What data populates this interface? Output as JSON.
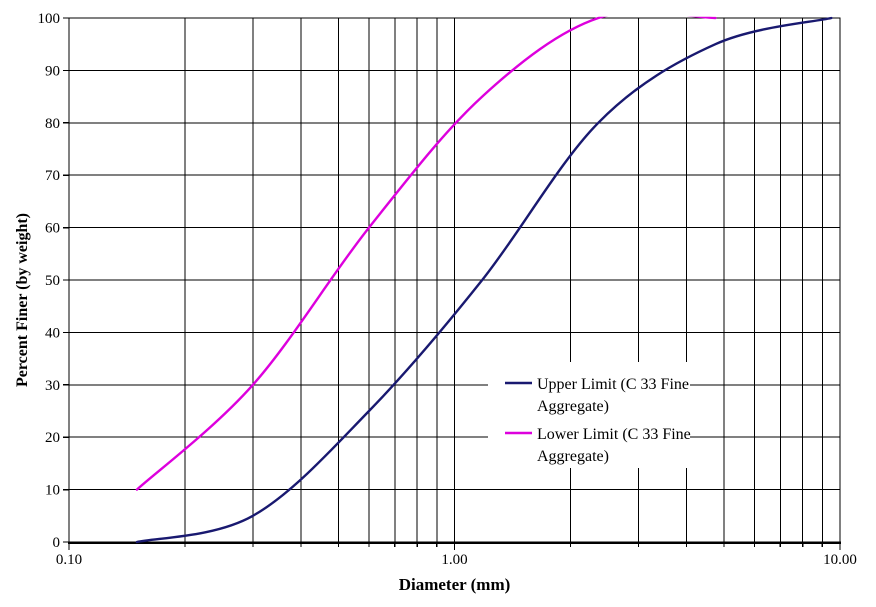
{
  "chart_data": {
    "type": "line",
    "title": "",
    "xlabel": "Diameter (mm)",
    "ylabel": "Percent Finer (by weight)",
    "x_axis": {
      "scale": "log",
      "min": 0.1,
      "max": 10,
      "major_ticks": [
        {
          "value": 0.1,
          "label": "0.10"
        },
        {
          "value": 1,
          "label": "1.00"
        },
        {
          "value": 10,
          "label": "10.00"
        }
      ],
      "minor_gridlines": [
        0.2,
        0.3,
        0.4,
        0.5,
        0.6,
        0.7,
        0.8,
        0.9,
        1,
        2,
        3,
        4,
        5,
        6,
        7,
        8,
        9
      ]
    },
    "y_axis": {
      "min": 0,
      "max": 100,
      "tick_step": 10,
      "ticks": [
        {
          "value": 0,
          "label": "0"
        },
        {
          "value": 10,
          "label": "10"
        },
        {
          "value": 20,
          "label": "20"
        },
        {
          "value": 30,
          "label": "30"
        },
        {
          "value": 40,
          "label": "40"
        },
        {
          "value": 50,
          "label": "50"
        },
        {
          "value": 60,
          "label": "60"
        },
        {
          "value": 70,
          "label": "70"
        },
        {
          "value": 80,
          "label": "80"
        },
        {
          "value": 90,
          "label": "90"
        },
        {
          "value": 100,
          "label": "100"
        }
      ]
    },
    "grid": {
      "enabled": true,
      "color": "#000000"
    },
    "legend": {
      "position": "inside-center-right",
      "items": [
        {
          "series": 0,
          "lines": [
            "Upper Limit (C 33 Fine",
            "Aggregate)"
          ]
        },
        {
          "series": 1,
          "lines": [
            "Lower Limit (C 33 Fine",
            "Aggregate)"
          ]
        }
      ]
    },
    "series": [
      {
        "name": "Upper Limit (C 33 Fine Aggregate)",
        "color": "#191970",
        "points": [
          [
            0.15,
            0
          ],
          [
            0.3,
            5
          ],
          [
            0.6,
            25
          ],
          [
            1.18,
            50
          ],
          [
            2.36,
            80
          ],
          [
            4.75,
            95
          ],
          [
            9.5,
            100
          ]
        ]
      },
      {
        "name": "Lower Limit (C 33 Fine Aggregate)",
        "color": "#DD00DD",
        "points": [
          [
            0.15,
            10
          ],
          [
            0.3,
            30
          ],
          [
            0.6,
            60
          ],
          [
            1.18,
            85
          ],
          [
            2.36,
            100
          ],
          [
            4.75,
            100
          ]
        ]
      }
    ],
    "colors": {
      "background": "#FFFFFF",
      "axis": "#000000",
      "text": "#000000"
    }
  }
}
